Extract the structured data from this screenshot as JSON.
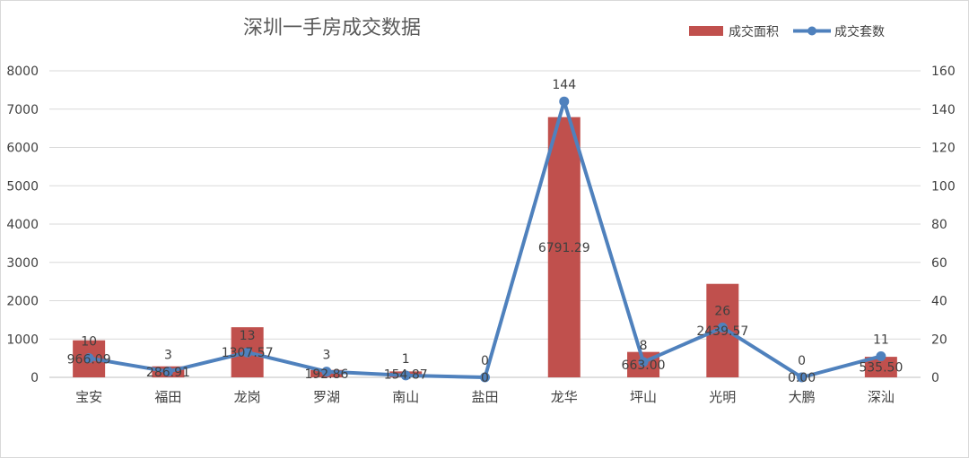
{
  "chart_data": {
    "type": "bar",
    "title": "深圳一手房成交数据",
    "categories": [
      "宝安",
      "福田",
      "龙岗",
      "罗湖",
      "南山",
      "盐田",
      "龙华",
      "坪山",
      "光明",
      "大鹏",
      "深汕"
    ],
    "series": [
      {
        "name": "成交面积",
        "type": "bar",
        "axis": "left",
        "color": "#c0504d",
        "values": [
          966.09,
          286.91,
          1307.57,
          192.86,
          154.87,
          0,
          6791.29,
          663.0,
          2439.57,
          0.0,
          535.5
        ],
        "labels": [
          "966.09",
          "286.91",
          "1307.57",
          "192.86",
          "154.87",
          "0",
          "6791.29",
          "663.00",
          "2439.57",
          "0.00",
          "535.50"
        ]
      },
      {
        "name": "成交套数",
        "type": "line",
        "axis": "right",
        "color": "#4f81bd",
        "values": [
          10,
          3,
          13,
          3,
          1,
          0,
          144,
          8,
          26,
          0,
          11
        ],
        "labels": [
          "10",
          "3",
          "13",
          "3",
          "1",
          "0",
          "144",
          "8",
          "26",
          "0",
          "11"
        ]
      }
    ],
    "y_left": {
      "min": 0,
      "max": 8000,
      "ticks": [
        "0",
        "1000",
        "2000",
        "3000",
        "4000",
        "5000",
        "6000",
        "7000",
        "8000"
      ]
    },
    "y_right": {
      "min": 0,
      "max": 160,
      "ticks": [
        "0",
        "20",
        "40",
        "60",
        "80",
        "100",
        "120",
        "140",
        "160"
      ]
    },
    "grid": true,
    "legend": "top-right"
  }
}
